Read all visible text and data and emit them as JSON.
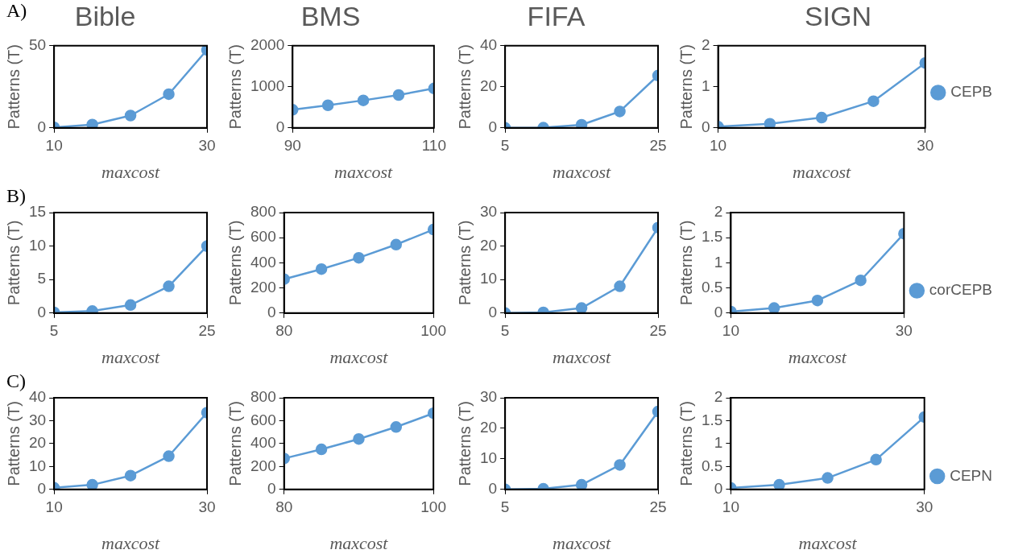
{
  "chart_data": [
    {
      "type": "line",
      "title": "Bible",
      "annotations": [
        "A)"
      ],
      "xlabel": "maxcost",
      "ylabel": "Patterns (T)",
      "x": [
        10,
        15,
        20,
        25,
        30
      ],
      "xlim": [
        10,
        30
      ],
      "xticks": [
        10,
        30
      ],
      "ylim": [
        0,
        50
      ],
      "yticks": [
        0,
        50
      ],
      "marker": "circle",
      "legend": false,
      "series": [
        {
          "color": "#5b9bd5",
          "values": [
            0.3,
            2,
            7.5,
            20.5,
            47.5
          ]
        }
      ]
    },
    {
      "type": "line",
      "title": "BMS",
      "xlabel": "maxcost",
      "ylabel": "Patterns (T)",
      "x": [
        90,
        95,
        100,
        105,
        110
      ],
      "xlim": [
        90,
        110
      ],
      "xticks": [
        90,
        110
      ],
      "ylim": [
        0,
        2000
      ],
      "yticks": [
        0,
        1000,
        2000
      ],
      "marker": "circle",
      "legend": false,
      "series": [
        {
          "color": "#5b9bd5",
          "values": [
            440,
            550,
            670,
            800,
            960
          ]
        }
      ]
    },
    {
      "type": "line",
      "title": "FIFA",
      "xlabel": "maxcost",
      "ylabel": "Patterns (T)",
      "x": [
        5,
        10,
        15,
        20,
        25
      ],
      "xlim": [
        5,
        25
      ],
      "xticks": [
        5,
        25
      ],
      "ylim": [
        0,
        40
      ],
      "yticks": [
        0,
        20,
        40
      ],
      "marker": "circle",
      "legend": false,
      "series": [
        {
          "color": "#5b9bd5",
          "values": [
            0,
            0.1,
            1.5,
            8,
            25.5
          ]
        }
      ]
    },
    {
      "type": "line",
      "title": "SIGN",
      "xlabel": "maxcost",
      "ylabel": "Patterns (T)",
      "x": [
        10,
        15,
        20,
        25,
        30
      ],
      "xlim": [
        10,
        30
      ],
      "xticks": [
        10,
        30
      ],
      "ylim": [
        0,
        2
      ],
      "yticks": [
        0,
        1,
        2
      ],
      "marker": "circle",
      "legend": "right",
      "series": [
        {
          "name": "CEPB",
          "color": "#5b9bd5",
          "values": [
            0.03,
            0.1,
            0.25,
            0.65,
            1.58
          ]
        }
      ]
    },
    {
      "type": "line",
      "annotations": [
        "B)"
      ],
      "xlabel": "maxcost",
      "ylabel": "Patterns (T)",
      "x": [
        5,
        10,
        15,
        20,
        25
      ],
      "xlim": [
        5,
        25
      ],
      "xticks": [
        5,
        25
      ],
      "ylim": [
        0,
        15
      ],
      "yticks": [
        0,
        5,
        10,
        15
      ],
      "marker": "circle",
      "legend": false,
      "series": [
        {
          "color": "#5b9bd5",
          "values": [
            0.1,
            0.3,
            1.2,
            4,
            10
          ]
        }
      ]
    },
    {
      "type": "line",
      "xlabel": "maxcost",
      "ylabel": "Patterns (T)",
      "x": [
        80,
        85,
        90,
        95,
        100
      ],
      "xlim": [
        80,
        100
      ],
      "xticks": [
        80,
        100
      ],
      "ylim": [
        0,
        800
      ],
      "yticks": [
        0,
        200,
        400,
        600,
        800
      ],
      "marker": "circle",
      "legend": false,
      "series": [
        {
          "color": "#5b9bd5",
          "values": [
            270,
            350,
            440,
            545,
            665
          ]
        }
      ]
    },
    {
      "type": "line",
      "xlabel": "maxcost",
      "ylabel": "Patterns (T)",
      "x": [
        5,
        10,
        15,
        20,
        25
      ],
      "xlim": [
        5,
        25
      ],
      "xticks": [
        5,
        25
      ],
      "ylim": [
        0,
        30
      ],
      "yticks": [
        0,
        10,
        20,
        30
      ],
      "marker": "circle",
      "legend": false,
      "series": [
        {
          "color": "#5b9bd5",
          "values": [
            0,
            0.2,
            1.5,
            8,
            25.5
          ]
        }
      ]
    },
    {
      "type": "line",
      "xlabel": "maxcost",
      "ylabel": "Patterns (T)",
      "x": [
        10,
        15,
        20,
        25,
        30
      ],
      "xlim": [
        10,
        30
      ],
      "xticks": [
        10,
        30
      ],
      "ylim": [
        0,
        2
      ],
      "yticks": [
        0,
        0.5,
        1,
        1.5,
        2
      ],
      "marker": "circle",
      "legend": "right",
      "series": [
        {
          "name": "corCEPB",
          "color": "#5b9bd5",
          "values": [
            0.03,
            0.1,
            0.25,
            0.65,
            1.58
          ]
        }
      ]
    },
    {
      "type": "line",
      "annotations": [
        "C)"
      ],
      "xlabel": "maxcost",
      "ylabel": "Patterns (T)",
      "x": [
        10,
        15,
        20,
        25,
        30
      ],
      "xlim": [
        10,
        30
      ],
      "xticks": [
        10,
        30
      ],
      "ylim": [
        0,
        40
      ],
      "yticks": [
        0,
        10,
        20,
        30,
        40
      ],
      "marker": "circle",
      "legend": false,
      "series": [
        {
          "color": "#5b9bd5",
          "values": [
            0.7,
            2,
            6,
            14.5,
            33.5
          ]
        }
      ]
    },
    {
      "type": "line",
      "xlabel": "maxcost",
      "ylabel": "Patterns (T)",
      "x": [
        80,
        85,
        90,
        95,
        100
      ],
      "xlim": [
        80,
        100
      ],
      "xticks": [
        80,
        100
      ],
      "ylim": [
        0,
        800
      ],
      "yticks": [
        0,
        200,
        400,
        600,
        800
      ],
      "marker": "circle",
      "legend": false,
      "series": [
        {
          "color": "#5b9bd5",
          "values": [
            270,
            350,
            440,
            545,
            665
          ]
        }
      ]
    },
    {
      "type": "line",
      "xlabel": "maxcost",
      "ylabel": "Patterns (T)",
      "x": [
        5,
        10,
        15,
        20,
        25
      ],
      "xlim": [
        5,
        25
      ],
      "xticks": [
        5,
        25
      ],
      "ylim": [
        0,
        30
      ],
      "yticks": [
        0,
        10,
        20,
        30
      ],
      "marker": "circle",
      "legend": false,
      "series": [
        {
          "color": "#5b9bd5",
          "values": [
            0,
            0.2,
            1.5,
            8,
            25.5
          ]
        }
      ]
    },
    {
      "type": "line",
      "xlabel": "maxcost",
      "ylabel": "Patterns (T)",
      "x": [
        10,
        15,
        20,
        25,
        30
      ],
      "xlim": [
        10,
        30
      ],
      "xticks": [
        10,
        30
      ],
      "ylim": [
        0,
        2
      ],
      "yticks": [
        0,
        0.5,
        1,
        1.5,
        2
      ],
      "marker": "circle",
      "legend": "right",
      "series": [
        {
          "name": "CEPN",
          "color": "#5b9bd5",
          "values": [
            0.03,
            0.1,
            0.25,
            0.65,
            1.58
          ]
        }
      ]
    }
  ]
}
